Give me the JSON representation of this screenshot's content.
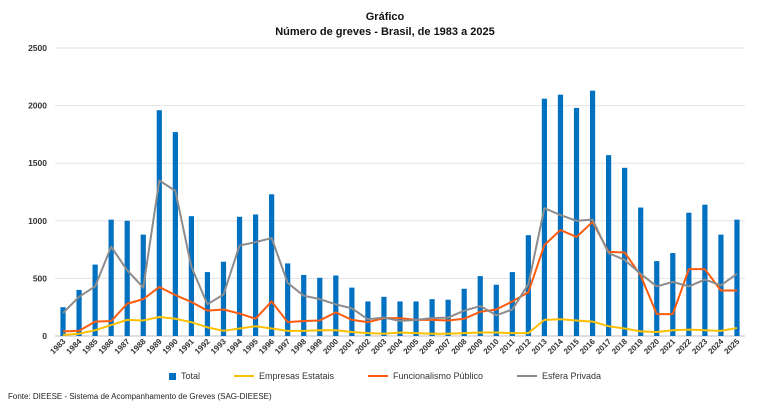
{
  "chart_data": {
    "type": "bar",
    "title": "Gráfico",
    "subtitle": "Número de greves - Brasil, de 1983 a 2025",
    "xlabel": "",
    "ylabel": "",
    "ylim": [
      0,
      2500
    ],
    "yticks": [
      0,
      500,
      1000,
      1500,
      2000,
      2500
    ],
    "grid": true,
    "legend_position": "bottom",
    "categories": [
      "1983",
      "1984",
      "1985",
      "1986",
      "1987",
      "1988",
      "1989",
      "1990",
      "1991",
      "1992",
      "1993",
      "1994",
      "1995",
      "1996",
      "1997",
      "1998",
      "1999",
      "2000",
      "2001",
      "2002",
      "2003",
      "2004",
      "2005",
      "2006",
      "2007",
      "2008",
      "2009",
      "2010",
      "2011",
      "2012",
      "2013",
      "2014",
      "2015",
      "2016",
      "2017",
      "2018",
      "2019",
      "2020",
      "2021",
      "2022",
      "2023",
      "2024",
      "2025"
    ],
    "series": [
      {
        "name": "Total",
        "type": "bar",
        "color": "#0070C0",
        "values": [
          250,
          400,
          620,
          1010,
          1000,
          880,
          1960,
          1770,
          1040,
          555,
          645,
          1035,
          1055,
          1230,
          630,
          530,
          505,
          525,
          420,
          300,
          340,
          300,
          300,
          320,
          315,
          410,
          520,
          445,
          555,
          875,
          2060,
          2095,
          1980,
          2130,
          1570,
          1460,
          1115,
          650,
          720,
          1070,
          1140,
          880,
          1010
        ]
      },
      {
        "name": "Empresas Estatais",
        "type": "line",
        "color": "#FFC000",
        "values": [
          10,
          20,
          50,
          95,
          140,
          135,
          165,
          150,
          120,
          75,
          45,
          65,
          85,
          65,
          45,
          45,
          50,
          50,
          35,
          25,
          20,
          30,
          25,
          20,
          20,
          25,
          30,
          30,
          25,
          25,
          140,
          145,
          135,
          125,
          85,
          65,
          40,
          35,
          50,
          55,
          50,
          45,
          70
        ]
      },
      {
        "name": "Funcionalismo Público",
        "type": "line",
        "color": "#FF5B0F",
        "values": [
          40,
          45,
          125,
          130,
          280,
          320,
          425,
          355,
          295,
          220,
          230,
          195,
          150,
          300,
          120,
          130,
          135,
          205,
          140,
          120,
          155,
          155,
          140,
          140,
          135,
          150,
          210,
          230,
          300,
          380,
          790,
          920,
          860,
          990,
          730,
          725,
          525,
          190,
          190,
          580,
          580,
          395,
          395
        ]
      },
      {
        "name": "Esfera Privada",
        "type": "line",
        "color": "#8C8C8C",
        "values": [
          200,
          340,
          430,
          775,
          570,
          420,
          1350,
          1260,
          600,
          275,
          360,
          785,
          815,
          850,
          460,
          350,
          320,
          275,
          240,
          145,
          160,
          130,
          140,
          155,
          160,
          220,
          260,
          180,
          230,
          450,
          1110,
          1050,
          1000,
          1010,
          720,
          660,
          540,
          430,
          470,
          430,
          490,
          440,
          540
        ]
      }
    ]
  },
  "source": "Fonte: DIEESE - Sistema de Acompanhamento de Greves (SAG-DIEESE)"
}
